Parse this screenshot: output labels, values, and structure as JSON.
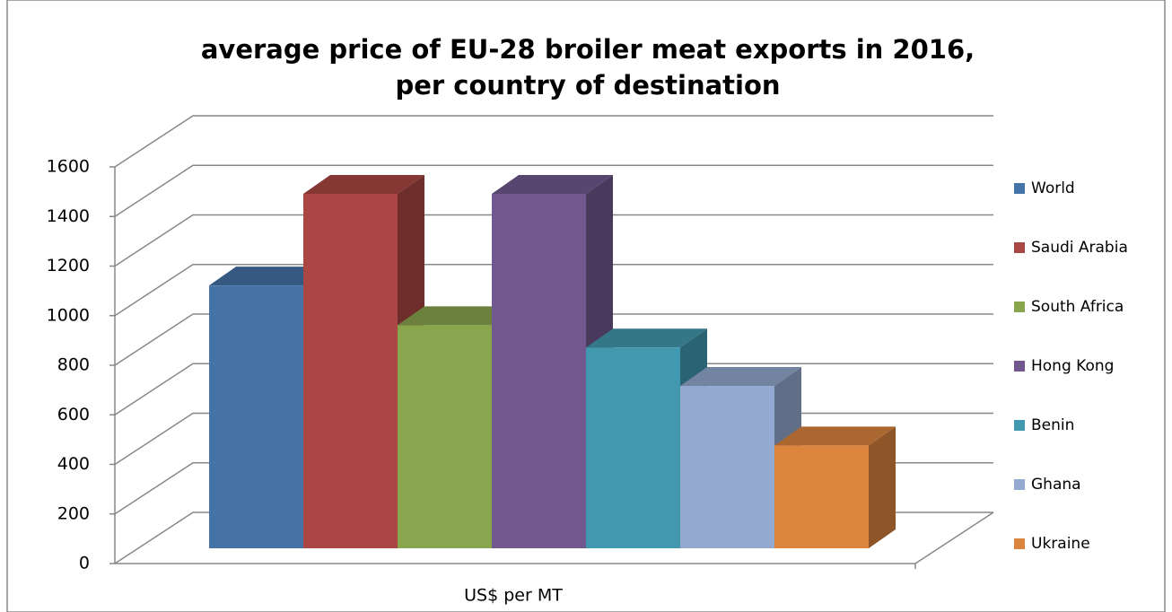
{
  "chart_data": {
    "type": "bar3d",
    "title": [
      "average price of EU-28 broiler meat exports in 2016,",
      "per country of destination"
    ],
    "categories": [
      "US$ per MT"
    ],
    "series": [
      {
        "name": "World",
        "color": "#4572a7",
        "values": [
          1060
        ]
      },
      {
        "name": "Saudi Arabia",
        "color": "#aa4643",
        "values": [
          1430
        ]
      },
      {
        "name": "South Africa",
        "color": "#89a54e",
        "values": [
          900
        ]
      },
      {
        "name": "Hong Kong",
        "color": "#71588f",
        "values": [
          1430
        ]
      },
      {
        "name": "Benin",
        "color": "#4198af",
        "values": [
          810
        ]
      },
      {
        "name": "Ghana",
        "color": "#93a9cf",
        "values": [
          655
        ]
      },
      {
        "name": "Ukraine",
        "color": "#db843d",
        "values": [
          415
        ]
      }
    ],
    "ylim": [
      0,
      1600
    ],
    "yticks": [
      0,
      200,
      400,
      600,
      800,
      1000,
      1200,
      1400,
      1600
    ],
    "grid": true,
    "legend": "right"
  }
}
